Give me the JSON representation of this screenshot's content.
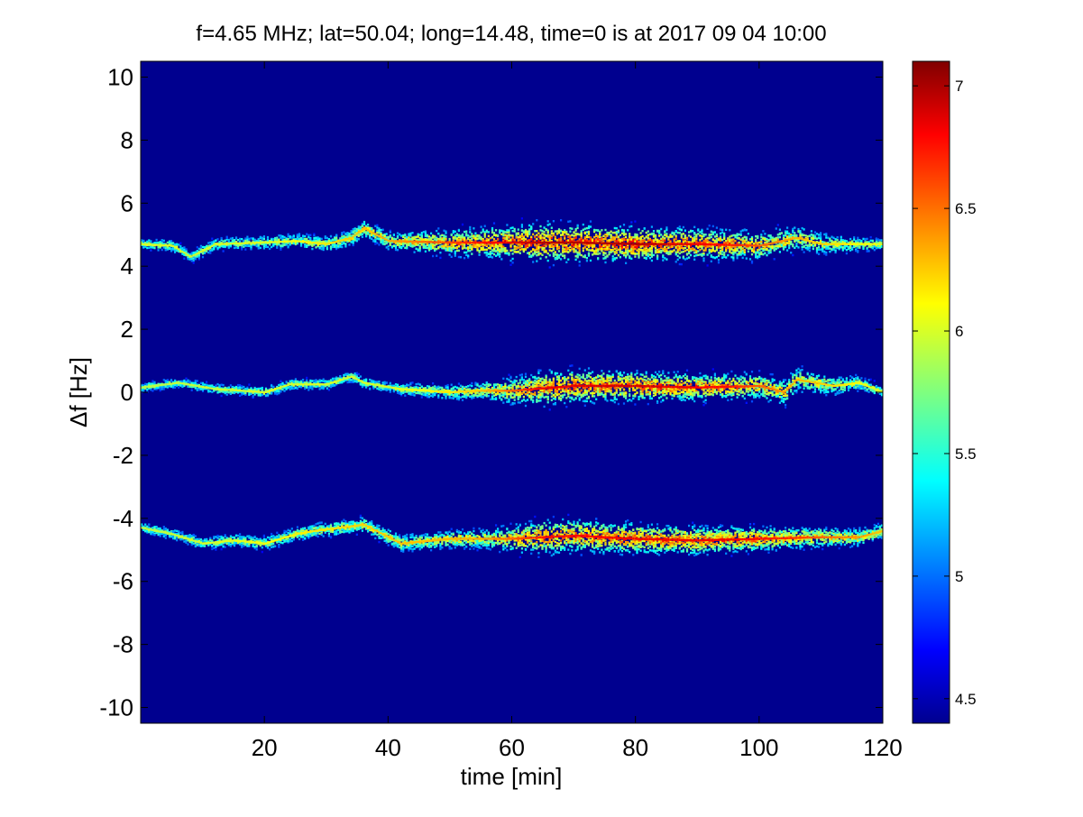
{
  "chart_data": {
    "type": "heatmap",
    "title": "f=4.65 MHz;  lat=50.04; long=14.48, time=0 is at 2017 09 04 10:00",
    "xlabel": "time [min]",
    "ylabel": "Δf [Hz]",
    "xlim": [
      0,
      120
    ],
    "ylim": [
      -10.5,
      10.5
    ],
    "x_ticks": [
      20,
      40,
      60,
      80,
      100,
      120
    ],
    "y_ticks": [
      10,
      8,
      6,
      4,
      2,
      0,
      -2,
      -4,
      -6,
      -8,
      -10
    ],
    "y_tick_labels": [
      "10",
      "8",
      "6",
      "4",
      "2",
      "0",
      "-2",
      "-4",
      "-6",
      "-8",
      "-10"
    ],
    "colorbar": {
      "range": [
        4.4,
        7.1
      ],
      "ticks": [
        4.5,
        5,
        5.5,
        6,
        6.5,
        7
      ],
      "tick_labels": [
        "4.5",
        "5",
        "5.5",
        "6",
        "6.5",
        "7"
      ],
      "colormap": "jet"
    },
    "background_color": "#00008f",
    "series": [
      {
        "center_points": [
          [
            0,
            4.7
          ],
          [
            5,
            4.65
          ],
          [
            8,
            4.3
          ],
          [
            12,
            4.7
          ],
          [
            20,
            4.75
          ],
          [
            25,
            4.8
          ],
          [
            30,
            4.7
          ],
          [
            34,
            4.9
          ],
          [
            36,
            5.2
          ],
          [
            40,
            4.8
          ],
          [
            50,
            4.75
          ],
          [
            60,
            4.75
          ],
          [
            70,
            4.75
          ],
          [
            80,
            4.7
          ],
          [
            90,
            4.7
          ],
          [
            100,
            4.65
          ],
          [
            106,
            4.9
          ],
          [
            110,
            4.7
          ],
          [
            120,
            4.7
          ]
        ],
        "activity": [
          [
            0,
            0.4
          ],
          [
            20,
            0.4
          ],
          [
            40,
            0.6
          ],
          [
            55,
            0.85
          ],
          [
            65,
            1.0
          ],
          [
            80,
            1.0
          ],
          [
            95,
            0.85
          ],
          [
            105,
            0.6
          ],
          [
            120,
            0.4
          ]
        ],
        "spread": [
          [
            0,
            0.12
          ],
          [
            20,
            0.15
          ],
          [
            40,
            0.2
          ],
          [
            55,
            0.35
          ],
          [
            65,
            0.45
          ],
          [
            80,
            0.4
          ],
          [
            95,
            0.35
          ],
          [
            105,
            0.3
          ],
          [
            120,
            0.12
          ]
        ]
      },
      {
        "center_points": [
          [
            0,
            0.15
          ],
          [
            6,
            0.3
          ],
          [
            12,
            0.1
          ],
          [
            20,
            0.0
          ],
          [
            24,
            0.25
          ],
          [
            30,
            0.25
          ],
          [
            34,
            0.5
          ],
          [
            36,
            0.3
          ],
          [
            42,
            0.1
          ],
          [
            50,
            0.0
          ],
          [
            55,
            0.05
          ],
          [
            60,
            0.05
          ],
          [
            70,
            0.2
          ],
          [
            80,
            0.2
          ],
          [
            90,
            0.15
          ],
          [
            100,
            0.2
          ],
          [
            104,
            0.0
          ],
          [
            106,
            0.4
          ],
          [
            112,
            0.2
          ],
          [
            116,
            0.3
          ],
          [
            120,
            0.0
          ]
        ],
        "activity": [
          [
            0,
            0.35
          ],
          [
            20,
            0.4
          ],
          [
            40,
            0.4
          ],
          [
            55,
            0.55
          ],
          [
            65,
            0.9
          ],
          [
            80,
            0.95
          ],
          [
            95,
            0.85
          ],
          [
            105,
            0.6
          ],
          [
            120,
            0.4
          ]
        ],
        "spread": [
          [
            0,
            0.1
          ],
          [
            20,
            0.12
          ],
          [
            40,
            0.12
          ],
          [
            55,
            0.2
          ],
          [
            65,
            0.4
          ],
          [
            80,
            0.35
          ],
          [
            95,
            0.3
          ],
          [
            105,
            0.3
          ],
          [
            120,
            0.12
          ]
        ]
      },
      {
        "center_points": [
          [
            0,
            -4.3
          ],
          [
            5,
            -4.5
          ],
          [
            10,
            -4.8
          ],
          [
            15,
            -4.7
          ],
          [
            20,
            -4.8
          ],
          [
            25,
            -4.5
          ],
          [
            28,
            -4.4
          ],
          [
            32,
            -4.3
          ],
          [
            36,
            -4.2
          ],
          [
            42,
            -4.8
          ],
          [
            50,
            -4.65
          ],
          [
            60,
            -4.65
          ],
          [
            70,
            -4.55
          ],
          [
            80,
            -4.65
          ],
          [
            90,
            -4.7
          ],
          [
            100,
            -4.65
          ],
          [
            110,
            -4.6
          ],
          [
            116,
            -4.6
          ],
          [
            120,
            -4.4
          ]
        ],
        "activity": [
          [
            0,
            0.35
          ],
          [
            20,
            0.45
          ],
          [
            40,
            0.55
          ],
          [
            55,
            0.6
          ],
          [
            65,
            0.85
          ],
          [
            80,
            0.9
          ],
          [
            95,
            0.9
          ],
          [
            105,
            0.8
          ],
          [
            120,
            0.55
          ]
        ],
        "spread": [
          [
            0,
            0.12
          ],
          [
            20,
            0.15
          ],
          [
            40,
            0.18
          ],
          [
            55,
            0.22
          ],
          [
            65,
            0.4
          ],
          [
            80,
            0.35
          ],
          [
            95,
            0.3
          ],
          [
            105,
            0.25
          ],
          [
            120,
            0.18
          ]
        ]
      }
    ]
  }
}
